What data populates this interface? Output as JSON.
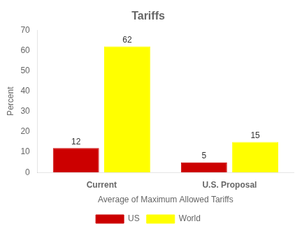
{
  "chart_data": {
    "type": "bar",
    "title": "Tariffs",
    "ylabel": "Percent",
    "xlabel": "Average of Maximum Allowed Tariffs",
    "categories": [
      "Current",
      "U.S. Proposal"
    ],
    "series": [
      {
        "name": "US",
        "color": "#CC0000",
        "values": [
          12,
          5
        ]
      },
      {
        "name": "World",
        "color": "#FFFF00",
        "values": [
          62,
          15
        ]
      }
    ],
    "ylim": [
      0,
      70
    ],
    "yticks": [
      0,
      10,
      20,
      30,
      40,
      50,
      60,
      70
    ],
    "grid": false,
    "legend": "bottom",
    "data_labels": true
  }
}
